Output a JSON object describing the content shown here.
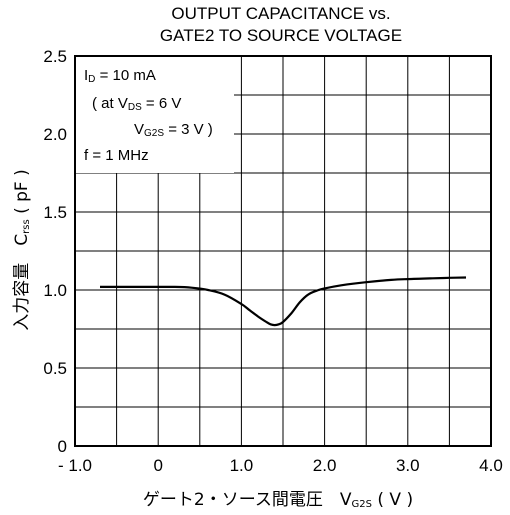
{
  "chart_data": {
    "type": "line",
    "title_lines": [
      "OUTPUT CAPACITANCE vs.",
      "GATE2 TO SOURCE VOLTAGE"
    ],
    "xlabel": "ゲート2・ソース間電圧　V",
    "xlabel_sub": "G2S",
    "xlabel_unit": " ( V )",
    "ylabel": "入力容量　C",
    "ylabel_sub": "rss",
    "ylabel_unit": " ( pF )",
    "xlim": [
      -1.0,
      4.0
    ],
    "ylim": [
      0,
      2.5
    ],
    "x_ticks": [
      {
        "value": -1.0,
        "label": "- 1.0"
      },
      {
        "value": 0,
        "label": "0"
      },
      {
        "value": 1.0,
        "label": "1.0"
      },
      {
        "value": 2.0,
        "label": "2.0"
      },
      {
        "value": 3.0,
        "label": "3.0"
      },
      {
        "value": 4.0,
        "label": "4.0"
      }
    ],
    "y_ticks": [
      {
        "value": 0,
        "label": "0"
      },
      {
        "value": 0.5,
        "label": "0.5"
      },
      {
        "value": 1.0,
        "label": "1.0"
      },
      {
        "value": 1.5,
        "label": "1.5"
      },
      {
        "value": 2.0,
        "label": "2.0"
      },
      {
        "value": 2.5,
        "label": "2.5"
      }
    ],
    "x_grid_step": 0.5,
    "y_grid_step": 0.25,
    "grid": true,
    "annotation": {
      "lines": [
        {
          "parts": [
            {
              "t": "I"
            },
            {
              "t": "D",
              "sub": true
            },
            {
              "t": " = 10 mA"
            }
          ]
        },
        {
          "parts": [
            {
              "t": "( at V"
            },
            {
              "t": "DS",
              "sub": true
            },
            {
              "t": " = 6 V"
            }
          ]
        },
        {
          "parts": [
            {
              "t": "V"
            },
            {
              "t": "G2S",
              "sub": true
            },
            {
              "t": " = 3 V )"
            }
          ]
        },
        {
          "parts": [
            {
              "t": "f = 1 MHz"
            }
          ]
        }
      ],
      "placement": "top-left"
    },
    "series": [
      {
        "x": [
          -0.7,
          -0.5,
          -0.2,
          0.0,
          0.2,
          0.4,
          0.6,
          0.8,
          1.0,
          1.1,
          1.2,
          1.3,
          1.35,
          1.4,
          1.45,
          1.5,
          1.6,
          1.7,
          1.8,
          1.9,
          2.0,
          2.2,
          2.5,
          2.8,
          3.0,
          3.3,
          3.5,
          3.7
        ],
        "values": [
          1.02,
          1.02,
          1.02,
          1.02,
          1.02,
          1.015,
          1.0,
          0.97,
          0.91,
          0.87,
          0.83,
          0.795,
          0.78,
          0.775,
          0.78,
          0.795,
          0.85,
          0.92,
          0.97,
          0.995,
          1.01,
          1.03,
          1.05,
          1.065,
          1.07,
          1.075,
          1.078,
          1.08
        ]
      }
    ]
  }
}
